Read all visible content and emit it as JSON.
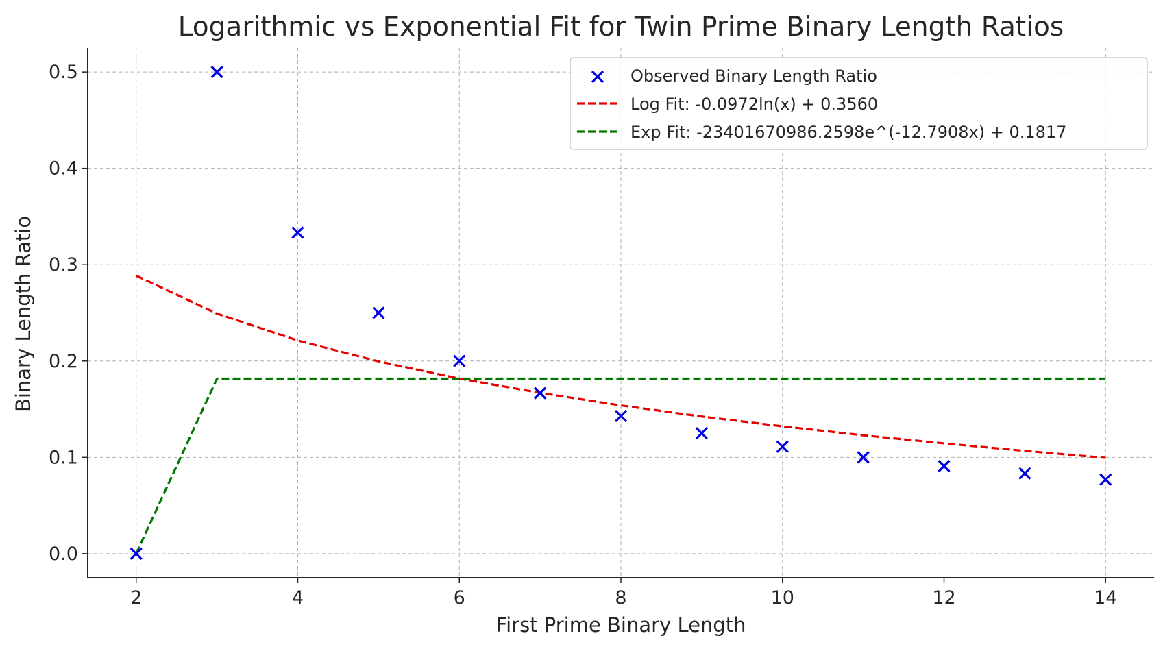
{
  "chart_data": {
    "type": "scatter",
    "title": "Logarithmic vs Exponential Fit for Twin Prime Binary Length Ratios",
    "xlabel": "First Prime Binary Length",
    "ylabel": "Binary Length Ratio",
    "xlim": [
      1.4,
      14.6
    ],
    "ylim": [
      -0.025,
      0.525
    ],
    "xticks": [
      2,
      4,
      6,
      8,
      10,
      12,
      14
    ],
    "yticks": [
      0.0,
      0.1,
      0.2,
      0.3,
      0.4,
      0.5
    ],
    "xtick_labels": [
      "2",
      "4",
      "6",
      "8",
      "10",
      "12",
      "14"
    ],
    "ytick_labels": [
      "0.0",
      "0.1",
      "0.2",
      "0.3",
      "0.4",
      "0.5"
    ],
    "grid": true,
    "legend_position": "top-right",
    "series": [
      {
        "name": "Observed Binary Length Ratio",
        "kind": "scatter",
        "marker": "x",
        "color": "#0000e6",
        "x": [
          2,
          3,
          4,
          5,
          6,
          7,
          8,
          9,
          10,
          11,
          12,
          13,
          14
        ],
        "y": [
          0.0,
          0.5,
          0.3333,
          0.25,
          0.2,
          0.1667,
          0.1429,
          0.125,
          0.1111,
          0.1,
          0.0909,
          0.0833,
          0.0769
        ]
      },
      {
        "name": "Log Fit: -0.0972ln(x) + 0.3560",
        "kind": "line",
        "style": "dashed",
        "color": "#e60000",
        "x": [
          2,
          3,
          4,
          5,
          6,
          7,
          8,
          9,
          10,
          11,
          12,
          13,
          14
        ],
        "y": [
          0.2886,
          0.2492,
          0.2213,
          0.1996,
          0.1818,
          0.1669,
          0.1539,
          0.1424,
          0.1322,
          0.1229,
          0.1145,
          0.1067,
          0.0995
        ]
      },
      {
        "name": "Exp Fit: -23401670986.2598e^(-12.7908x) + 0.1817",
        "kind": "line",
        "style": "dashed",
        "color": "#007800",
        "x": [
          2,
          3,
          4,
          5,
          6,
          7,
          8,
          9,
          10,
          11,
          12,
          13,
          14
        ],
        "y": [
          0.0001,
          0.1817,
          0.1817,
          0.1817,
          0.1817,
          0.1817,
          0.1817,
          0.1817,
          0.1817,
          0.1817,
          0.1817,
          0.1817,
          0.1817
        ]
      }
    ]
  }
}
